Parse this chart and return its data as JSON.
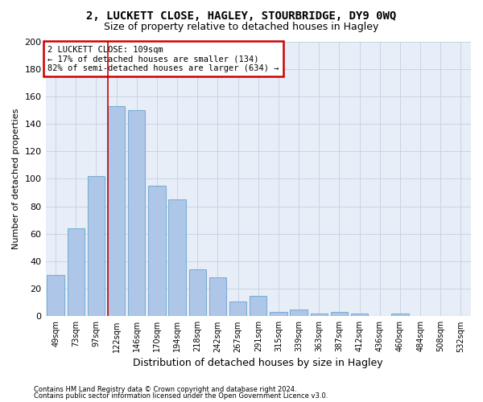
{
  "title": "2, LUCKETT CLOSE, HAGLEY, STOURBRIDGE, DY9 0WQ",
  "subtitle": "Size of property relative to detached houses in Hagley",
  "xlabel": "Distribution of detached houses by size in Hagley",
  "ylabel": "Number of detached properties",
  "categories": [
    "49sqm",
    "73sqm",
    "97sqm",
    "122sqm",
    "146sqm",
    "170sqm",
    "194sqm",
    "218sqm",
    "242sqm",
    "267sqm",
    "291sqm",
    "315sqm",
    "339sqm",
    "363sqm",
    "387sqm",
    "412sqm",
    "436sqm",
    "460sqm",
    "484sqm",
    "508sqm",
    "532sqm"
  ],
  "values": [
    30,
    64,
    102,
    153,
    150,
    95,
    85,
    34,
    28,
    11,
    15,
    3,
    5,
    2,
    3,
    2,
    0,
    2,
    0,
    0,
    0
  ],
  "bar_color": "#aec6e8",
  "bar_edge_color": "#7aafd4",
  "grid_color": "#c8d4e4",
  "bg_color": "#e8eef8",
  "vline_color": "#cc0000",
  "vline_position": 2.575,
  "annotation_line1": "2 LUCKETT CLOSE: 109sqm",
  "annotation_line2": "← 17% of detached houses are smaller (134)",
  "annotation_line3": "82% of semi-detached houses are larger (634) →",
  "annotation_box_color": "#ffffff",
  "annotation_box_edge": "#cc0000",
  "footer1": "Contains HM Land Registry data © Crown copyright and database right 2024.",
  "footer2": "Contains public sector information licensed under the Open Government Licence v3.0.",
  "ylim": [
    0,
    200
  ],
  "yticks": [
    0,
    20,
    40,
    60,
    80,
    100,
    120,
    140,
    160,
    180,
    200
  ],
  "figsize": [
    6.0,
    5.0
  ],
  "dpi": 100
}
